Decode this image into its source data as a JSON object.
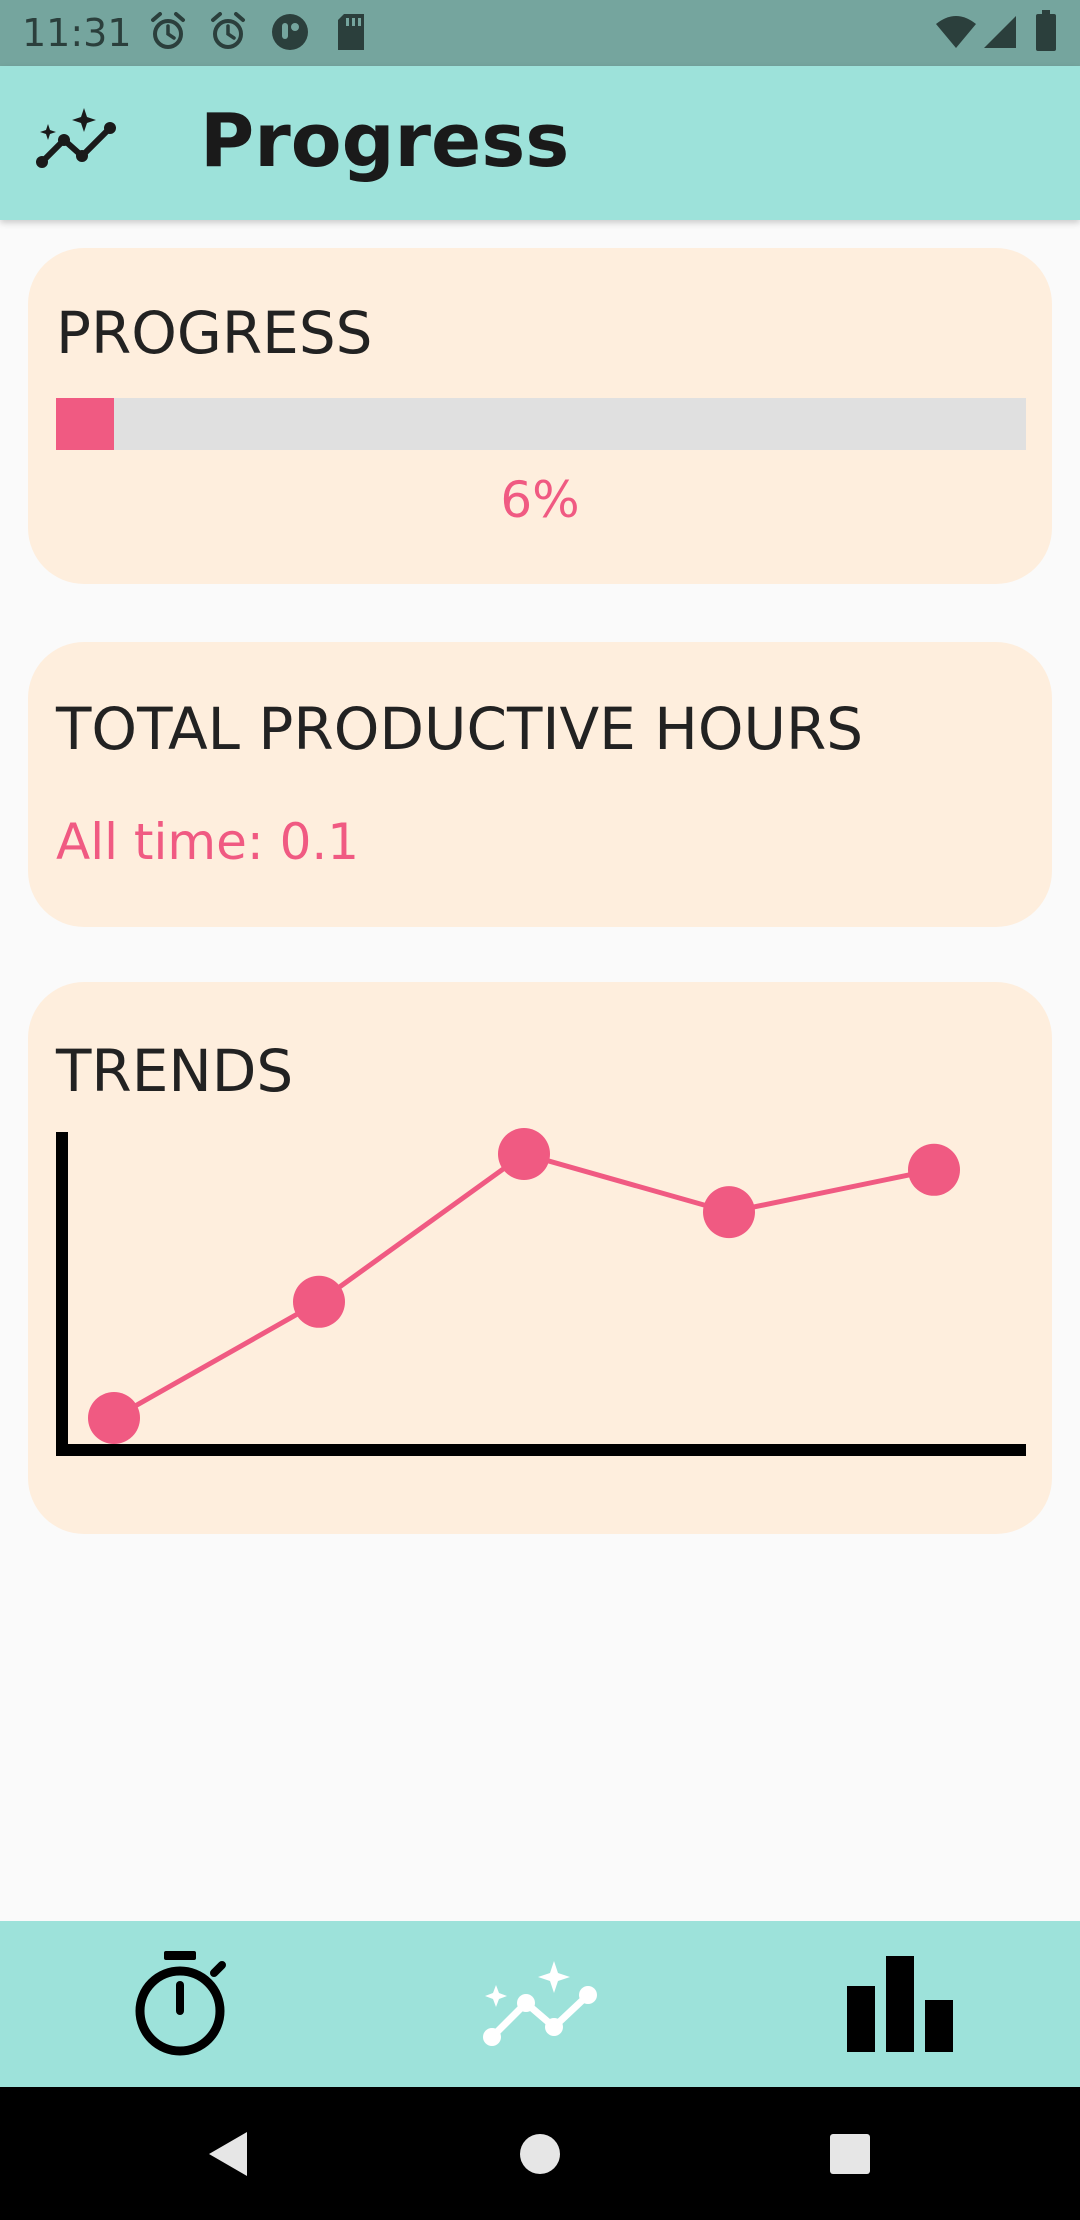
{
  "status_bar": {
    "time": "11:31",
    "left_icons": [
      "alarm-icon",
      "alarm-icon",
      "app-notification-icon",
      "sd-card-icon"
    ],
    "right_icons": [
      "wifi-icon",
      "cell-signal-icon",
      "battery-icon"
    ]
  },
  "app_bar": {
    "title": "Progress",
    "icon": "insights-icon"
  },
  "progress_card": {
    "title": "PROGRESS",
    "value_label": "6%",
    "value": 0.06,
    "fill_color": "#f05a82"
  },
  "hours_card": {
    "title": "TOTAL PRODUCTIVE HOURS",
    "all_time": "All time: 0.1"
  },
  "trends_card": {
    "title": "TRENDS"
  },
  "chart_data": {
    "type": "line",
    "x": [
      1,
      2,
      3,
      4,
      5
    ],
    "series": [
      {
        "values": [
          0.0,
          0.44,
          1.0,
          0.78,
          0.94
        ]
      }
    ],
    "ylim": [
      0,
      1
    ],
    "grid": false,
    "color": "#f05a82"
  },
  "bottom_nav": {
    "items": [
      {
        "icon": "timer-icon",
        "active": false
      },
      {
        "icon": "insights-icon",
        "active": true
      },
      {
        "icon": "bar-chart-icon",
        "active": false
      }
    ]
  },
  "system_nav": {
    "items": [
      "back-icon",
      "home-icon",
      "recents-icon"
    ]
  },
  "colors": {
    "accent": "#f05a82",
    "app_bar": "#9de2da",
    "card": "#feeedd"
  }
}
